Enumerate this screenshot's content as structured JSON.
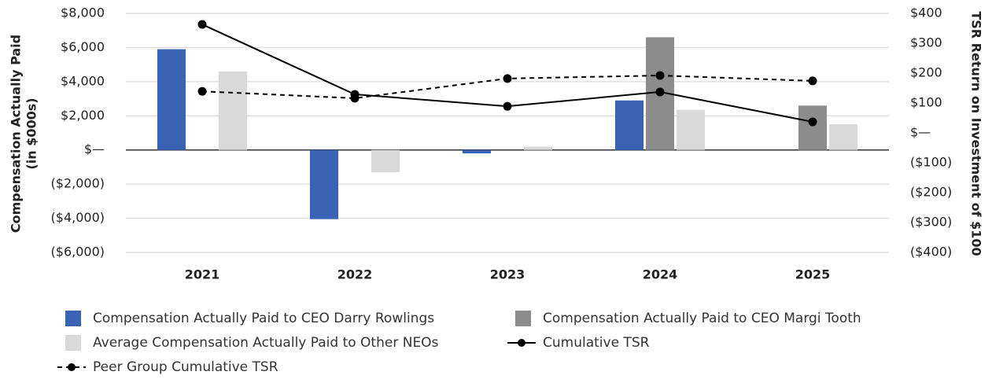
{
  "chart_data": {
    "type": "bar",
    "y_label": [
      "Compensation Actually Paid",
      "(in $000s)"
    ],
    "y2_label": "TSR Return on Investment of $100",
    "categories": [
      "2021",
      "2022",
      "2023",
      "2024",
      "2025"
    ],
    "series": [
      {
        "name": "Compensation Actually Paid to CEO Darry Rowlings",
        "type": "bar",
        "color": "#3a63b5",
        "values": [
          5900,
          -4050,
          -200,
          2900,
          null
        ]
      },
      {
        "name": "Compensation Actually Paid to CEO Margi Tooth",
        "type": "bar",
        "color": "#8c8c8c",
        "values": [
          null,
          null,
          null,
          6600,
          2600
        ]
      },
      {
        "name": "Average Compensation Actually Paid to Other NEOs",
        "type": "bar",
        "color": "#d9d9d9",
        "values": [
          4600,
          -1300,
          200,
          2350,
          1500
        ]
      },
      {
        "name": "Cumulative TSR",
        "type": "line",
        "axis": "y2",
        "color": "#000000",
        "dashed": false,
        "values": [
          363,
          129,
          89,
          137,
          37
        ]
      },
      {
        "name": "Peer Group Cumulative TSR",
        "type": "line",
        "axis": "y2",
        "color": "#000000",
        "dashed": true,
        "values": [
          139,
          116,
          182,
          192,
          174
        ]
      }
    ],
    "ylim": [
      -6000,
      8000
    ],
    "yticks": [
      {
        "value": -6000,
        "label": "($6,000)"
      },
      {
        "value": -4000,
        "label": "($4,000)"
      },
      {
        "value": -2000,
        "label": "($2,000)"
      },
      {
        "value": 0,
        "label": "$—"
      },
      {
        "value": 2000,
        "label": "$2,000"
      },
      {
        "value": 4000,
        "label": "$4,000"
      },
      {
        "value": 6000,
        "label": "$6,000"
      },
      {
        "value": 8000,
        "label": "$8,000"
      }
    ],
    "y2lim": [
      -400,
      400
    ],
    "y2ticks": [
      {
        "value": -400,
        "label": "($400)"
      },
      {
        "value": -300,
        "label": "($300)"
      },
      {
        "value": -200,
        "label": "($200)"
      },
      {
        "value": -100,
        "label": "($100)"
      },
      {
        "value": 0,
        "label": "$—"
      },
      {
        "value": 100,
        "label": "$100"
      },
      {
        "value": 200,
        "label": "$200"
      },
      {
        "value": 300,
        "label": "$300"
      },
      {
        "value": 400,
        "label": "$400"
      }
    ],
    "grid": true,
    "legend": "bottom"
  }
}
